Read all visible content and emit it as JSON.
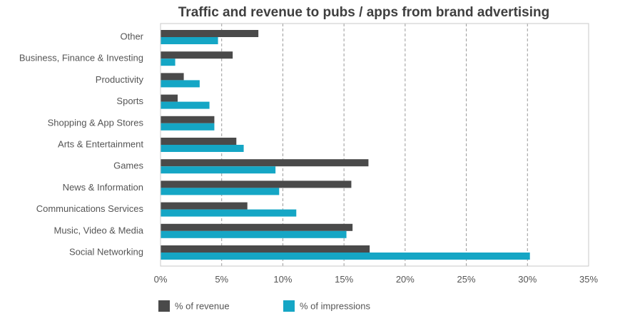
{
  "chart_data": {
    "type": "bar",
    "orientation": "horizontal",
    "title": "Traffic and revenue to pubs / apps from brand advertising",
    "xlabel": "",
    "ylabel": "",
    "xlim": [
      0,
      35
    ],
    "grid": true,
    "legend_position": "bottom-left",
    "categories": [
      "Other",
      "Business, Finance & Investing",
      "Productivity",
      "Sports",
      "Shopping & App Stores",
      "Arts & Entertainment",
      "Games",
      "News & Information",
      "Communications Services",
      "Music, Video & Media",
      "Social Networking"
    ],
    "x_ticks": [
      0,
      5,
      10,
      15,
      20,
      25,
      30,
      35
    ],
    "x_tick_labels": [
      "0%",
      "5%",
      "10%",
      "15%",
      "20%",
      "25%",
      "30%",
      "35%"
    ],
    "series": [
      {
        "name": "% of revenue",
        "color": "#4a4a4a",
        "values": [
          8.0,
          5.9,
          1.9,
          1.4,
          4.4,
          6.2,
          17.0,
          15.6,
          7.1,
          15.7,
          17.1
        ]
      },
      {
        "name": "% of impressions",
        "color": "#15a6c5",
        "values": [
          4.7,
          1.2,
          3.2,
          4.0,
          4.4,
          6.8,
          9.4,
          9.7,
          11.1,
          15.2,
          30.2
        ]
      }
    ]
  }
}
